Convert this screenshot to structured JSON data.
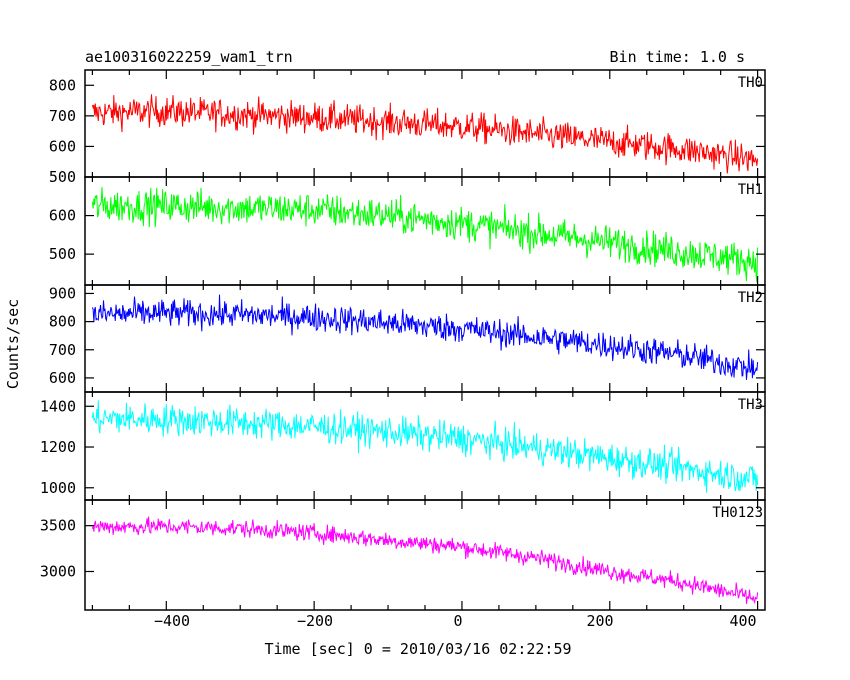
{
  "header": {
    "title": "ae100316022259_wam1_trn",
    "bin_time": "Bin time: 1.0 s"
  },
  "axes": {
    "xlabel": "Time [sec] 0 = 2010/03/16 02:22:59",
    "ylabel": "Counts/sec",
    "x_ticks": [
      "−400",
      "−200",
      "0",
      "200",
      "400"
    ]
  },
  "chart_data": [
    {
      "type": "line",
      "name": "TH0",
      "color": "#ff0000",
      "xlim": [
        -510,
        410
      ],
      "ylim": [
        500,
        850
      ],
      "yticks": [
        500,
        600,
        700,
        800
      ],
      "bin_time_s": 1.0,
      "x": [
        -500,
        -400,
        -300,
        -200,
        -100,
        0,
        100,
        200,
        300,
        400
      ],
      "values": [
        710,
        715,
        705,
        695,
        680,
        665,
        640,
        615,
        590,
        555
      ],
      "noise_amplitude": 45
    },
    {
      "type": "line",
      "name": "TH1",
      "color": "#00ff00",
      "xlim": [
        -510,
        410
      ],
      "ylim": [
        420,
        700
      ],
      "yticks": [
        500,
        600
      ],
      "bin_time_s": 1.0,
      "x": [
        -500,
        -400,
        -300,
        -200,
        -100,
        0,
        100,
        200,
        300,
        400
      ],
      "values": [
        625,
        625,
        620,
        615,
        600,
        580,
        555,
        530,
        505,
        480
      ],
      "noise_amplitude": 40
    },
    {
      "type": "line",
      "name": "TH2",
      "color": "#0000ff",
      "xlim": [
        -510,
        410
      ],
      "ylim": [
        550,
        930
      ],
      "yticks": [
        600,
        700,
        800,
        900
      ],
      "bin_time_s": 1.0,
      "x": [
        -500,
        -400,
        -300,
        -200,
        -100,
        0,
        100,
        200,
        300,
        400
      ],
      "values": [
        825,
        830,
        825,
        815,
        795,
        775,
        745,
        715,
        680,
        630
      ],
      "noise_amplitude": 45
    },
    {
      "type": "line",
      "name": "TH3",
      "color": "#00ffff",
      "xlim": [
        -510,
        410
      ],
      "ylim": [
        940,
        1470
      ],
      "yticks": [
        1000,
        1200,
        1400
      ],
      "bin_time_s": 1.0,
      "x": [
        -500,
        -400,
        -300,
        -200,
        -100,
        0,
        100,
        200,
        300,
        400
      ],
      "values": [
        1340,
        1335,
        1320,
        1300,
        1275,
        1240,
        1195,
        1145,
        1095,
        1040
      ],
      "noise_amplitude": 70
    },
    {
      "type": "line",
      "name": "TH0123",
      "color": "#ff00ff",
      "xlim": [
        -510,
        410
      ],
      "ylim": [
        2580,
        3780
      ],
      "yticks": [
        3000,
        3500
      ],
      "bin_time_s": 1.0,
      "x": [
        -500,
        -400,
        -300,
        -200,
        -100,
        0,
        100,
        200,
        300,
        400
      ],
      "values": [
        3490,
        3490,
        3470,
        3420,
        3340,
        3270,
        3150,
        3000,
        2880,
        2700
      ],
      "noise_amplitude": 85
    }
  ]
}
